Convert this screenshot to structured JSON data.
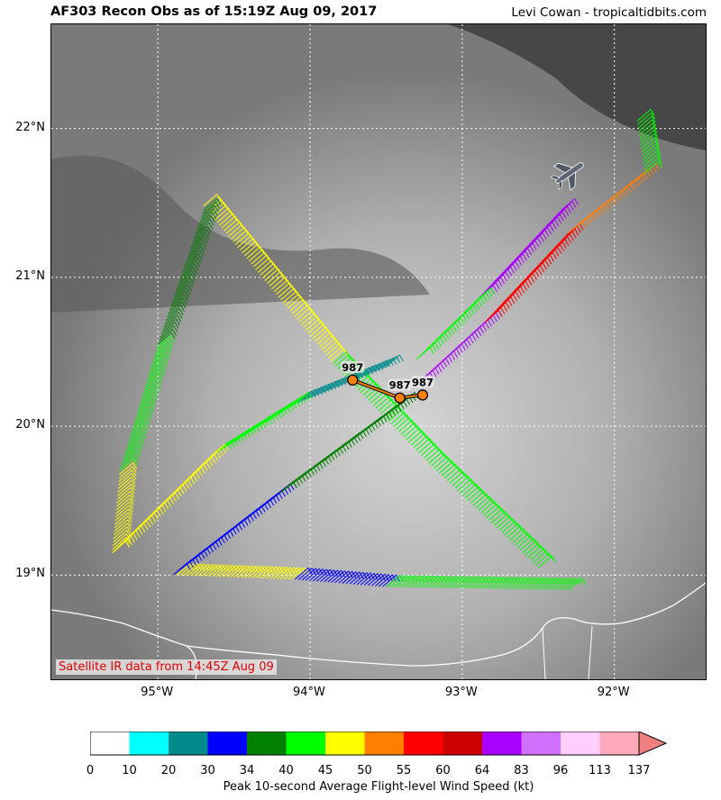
{
  "header": {
    "title": "AF303 Recon Obs as of 15:19Z Aug 09, 2017",
    "credit": "Levi Cowan - tropicaltidbits.com"
  },
  "map": {
    "lon_range": [
      -95.7,
      -91.4
    ],
    "lat_range": [
      18.3,
      22.7
    ],
    "lat_ticks": [
      {
        "value": 22,
        "label": "22°N"
      },
      {
        "value": 21,
        "label": "21°N"
      },
      {
        "value": 20,
        "label": "20°N"
      },
      {
        "value": 19,
        "label": "19°N"
      }
    ],
    "lon_ticks": [
      {
        "value": -95,
        "label": "95°W"
      },
      {
        "value": -94,
        "label": "94°W"
      },
      {
        "value": -93,
        "label": "93°W"
      },
      {
        "value": -92,
        "label": "92°W"
      }
    ],
    "gridlines": "dotted white",
    "satellite_note": "Satellite IR data from 14:45Z Aug 09",
    "pressure_obs": [
      {
        "label": "987",
        "lon": -93.72,
        "lat": 20.31
      },
      {
        "label": "987",
        "lon": -93.41,
        "lat": 20.19
      },
      {
        "label": "987",
        "lon": -93.26,
        "lat": 20.21
      }
    ],
    "flight_track": [
      {
        "from": [
          -94.7,
          21.48
        ],
        "to": [
          -93.85,
          20.42
        ],
        "speed": 46
      },
      {
        "from": [
          -93.85,
          20.42
        ],
        "to": [
          -93.22,
          19.75
        ],
        "speed": 44
      },
      {
        "from": [
          -93.22,
          19.75
        ],
        "to": [
          -92.5,
          19.05
        ],
        "speed": 42
      },
      {
        "from": [
          -93.3,
          20.28
        ],
        "to": [
          -92.85,
          20.7
        ],
        "speed": 78
      },
      {
        "from": [
          -92.85,
          20.7
        ],
        "to": [
          -92.3,
          21.3
        ],
        "speed": 58
      },
      {
        "from": [
          -92.3,
          21.3
        ],
        "to": [
          -91.8,
          21.7
        ],
        "speed": 51
      },
      {
        "from": [
          -91.8,
          21.7
        ],
        "to": [
          -91.85,
          22.05
        ],
        "speed": 44
      },
      {
        "from": [
          -92.35,
          21.45
        ],
        "to": [
          -92.9,
          20.85
        ],
        "speed": 80
      },
      {
        "from": [
          -92.9,
          20.85
        ],
        "to": [
          -93.3,
          20.45
        ],
        "speed": 44
      },
      {
        "from": [
          -93.5,
          20.4
        ],
        "to": [
          -94.1,
          20.15
        ],
        "speed": 28
      },
      {
        "from": [
          -94.1,
          20.15
        ],
        "to": [
          -94.65,
          19.8
        ],
        "speed": 42
      },
      {
        "from": [
          -94.65,
          19.8
        ],
        "to": [
          -95.3,
          19.15
        ],
        "speed": 46
      },
      {
        "from": [
          -95.3,
          19.15
        ],
        "to": [
          -95.25,
          19.7
        ],
        "speed": 48
      },
      {
        "from": [
          -95.25,
          19.7
        ],
        "to": [
          -95.0,
          20.55
        ],
        "speed": 40
      },
      {
        "from": [
          -95.0,
          20.55
        ],
        "to": [
          -94.7,
          21.45
        ],
        "speed": 38
      },
      {
        "from": [
          -94.9,
          19.0
        ],
        "to": [
          -94.1,
          18.97
        ],
        "speed": 45
      },
      {
        "from": [
          -94.1,
          18.97
        ],
        "to": [
          -93.5,
          18.92
        ],
        "speed": 32
      },
      {
        "from": [
          -93.5,
          18.92
        ],
        "to": [
          -92.3,
          18.9
        ],
        "speed": 40
      },
      {
        "from": [
          -94.9,
          19.0
        ],
        "to": [
          -94.2,
          19.55
        ],
        "speed": 33
      },
      {
        "from": [
          -94.2,
          19.55
        ],
        "to": [
          -93.4,
          20.15
        ],
        "speed": 35
      }
    ]
  },
  "colorbar": {
    "label": "Peak 10-second Average Flight-level Wind Speed (kt)",
    "ticks": [
      "0",
      "10",
      "20",
      "30",
      "34",
      "40",
      "45",
      "50",
      "55",
      "60",
      "64",
      "83",
      "96",
      "113",
      "137"
    ],
    "colors": [
      "#ffffff",
      "#00ffff",
      "#008b8b",
      "#0000ff",
      "#008000",
      "#00ff00",
      "#ffff00",
      "#ff8000",
      "#ff0000",
      "#cc0000",
      "#aa00ff",
      "#d070ff",
      "#ffd0ff",
      "#ffaabb",
      "#f08080"
    ]
  }
}
